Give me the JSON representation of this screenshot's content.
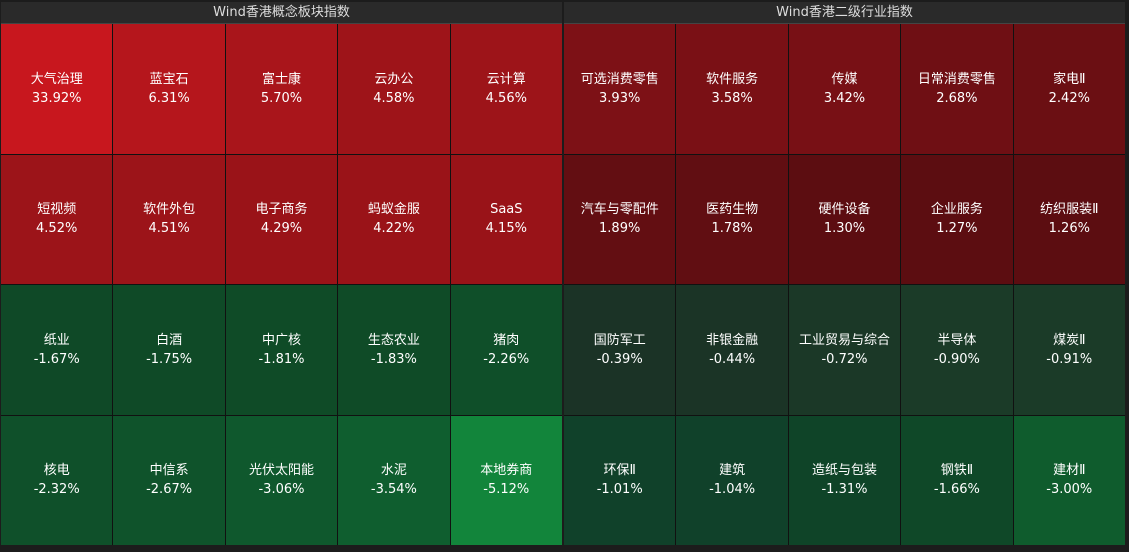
{
  "panels": [
    {
      "title": "Wind香港概念板块指数",
      "cells": [
        {
          "name": "大气治理",
          "change": "33.92%",
          "color": "#c8171e"
        },
        {
          "name": "蓝宝石",
          "change": "6.31%",
          "color": "#b5161c"
        },
        {
          "name": "富士康",
          "change": "5.70%",
          "color": "#a9151b"
        },
        {
          "name": "云办公",
          "change": "4.58%",
          "color": "#9e1419"
        },
        {
          "name": "云计算",
          "change": "4.56%",
          "color": "#9d1419"
        },
        {
          "name": "短视频",
          "change": "4.52%",
          "color": "#9c1419"
        },
        {
          "name": "软件外包",
          "change": "4.51%",
          "color": "#9c1419"
        },
        {
          "name": "电子商务",
          "change": "4.29%",
          "color": "#9a1318"
        },
        {
          "name": "蚂蚁金服",
          "change": "4.22%",
          "color": "#9a1318"
        },
        {
          "name": "SaaS",
          "change": "4.15%",
          "color": "#991318"
        },
        {
          "name": "纸业",
          "change": "-1.67%",
          "color": "#0f4927"
        },
        {
          "name": "白酒",
          "change": "-1.75%",
          "color": "#0f4a27"
        },
        {
          "name": "中广核",
          "change": "-1.81%",
          "color": "#0f4b27"
        },
        {
          "name": "生态农业",
          "change": "-1.83%",
          "color": "#0f4b27"
        },
        {
          "name": "猪肉",
          "change": "-2.26%",
          "color": "#0f4f29"
        },
        {
          "name": "核电",
          "change": "-2.32%",
          "color": "#0f502a"
        },
        {
          "name": "中信系",
          "change": "-2.67%",
          "color": "#0f532b"
        },
        {
          "name": "光伏太阳能",
          "change": "-3.06%",
          "color": "#0f582d"
        },
        {
          "name": "水泥",
          "change": "-3.54%",
          "color": "#0f5e2f"
        },
        {
          "name": "本地券商",
          "change": "-5.12%",
          "color": "#12853b"
        }
      ]
    },
    {
      "title": "Wind香港二级行业指数",
      "cells": [
        {
          "name": "可选消费零售",
          "change": "3.93%",
          "color": "#7d1116"
        },
        {
          "name": "软件服务",
          "change": "3.58%",
          "color": "#7a1015"
        },
        {
          "name": "传媒",
          "change": "3.42%",
          "color": "#781015"
        },
        {
          "name": "日常消费零售",
          "change": "2.68%",
          "color": "#6f0f14"
        },
        {
          "name": "家电Ⅱ",
          "change": "2.42%",
          "color": "#6b0f13"
        },
        {
          "name": "汽车与零配件",
          "change": "1.89%",
          "color": "#630e12"
        },
        {
          "name": "医药生物",
          "change": "1.78%",
          "color": "#610e12"
        },
        {
          "name": "硬件设备",
          "change": "1.30%",
          "color": "#5c0d11"
        },
        {
          "name": "企业服务",
          "change": "1.27%",
          "color": "#5c0d11"
        },
        {
          "name": "纺织服装Ⅱ",
          "change": "1.26%",
          "color": "#5c0d11"
        },
        {
          "name": "国防军工",
          "change": "-0.39%",
          "color": "#1b3326"
        },
        {
          "name": "非银金融",
          "change": "-0.44%",
          "color": "#1b3426"
        },
        {
          "name": "工业贸易与综合",
          "change": "-0.72%",
          "color": "#1b3827"
        },
        {
          "name": "半导体",
          "change": "-0.90%",
          "color": "#1b3b28"
        },
        {
          "name": "煤炭Ⅱ",
          "change": "-0.91%",
          "color": "#1b3b28"
        },
        {
          "name": "环保Ⅱ",
          "change": "-1.01%",
          "color": "#10412a"
        },
        {
          "name": "建筑",
          "change": "-1.04%",
          "color": "#10412a"
        },
        {
          "name": "造纸与包装",
          "change": "-1.31%",
          "color": "#0f4428"
        },
        {
          "name": "钢铁Ⅱ",
          "change": "-1.66%",
          "color": "#0f4828"
        },
        {
          "name": "建材Ⅱ",
          "change": "-3.00%",
          "color": "#0f5c2d"
        }
      ]
    }
  ]
}
